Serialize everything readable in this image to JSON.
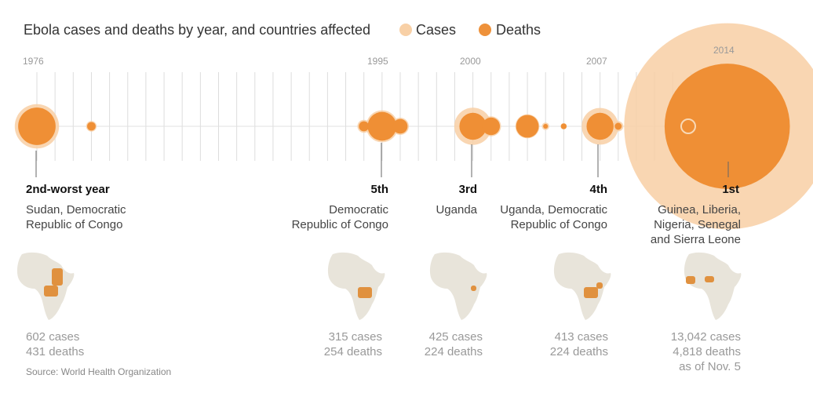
{
  "title": "Ebola cases and deaths by year, and countries affected",
  "legend": [
    {
      "label": "Cases",
      "color": "#f8d0a6"
    },
    {
      "label": "Deaths",
      "color": "#ee913a"
    }
  ],
  "colors": {
    "cases": "#f8cfa5",
    "deaths": "#ef8f35",
    "tick": "#dddddd",
    "axis": "#e0e0e0",
    "map": "#e8e4da",
    "map_affected": "#e0913f"
  },
  "year_labels": [
    "1976",
    "1995",
    "2000",
    "2007",
    "2014"
  ],
  "chart_data": {
    "type": "bubble-timeline",
    "x_range": [
      1976,
      2014
    ],
    "x_unit": "year",
    "series": [
      {
        "name": "Cases",
        "values": [
          {
            "year": 1976,
            "value": 602
          },
          {
            "year": 1979,
            "value": 34
          },
          {
            "year": 1994,
            "value": 52
          },
          {
            "year": 1995,
            "value": 315
          },
          {
            "year": 1996,
            "value": 91
          },
          {
            "year": 2000,
            "value": 425
          },
          {
            "year": 2001,
            "value": 122
          },
          {
            "year": 2003,
            "value": 178
          },
          {
            "year": 2004,
            "value": 17
          },
          {
            "year": 2005,
            "value": 12
          },
          {
            "year": 2007,
            "value": 413
          },
          {
            "year": 2008,
            "value": 32
          },
          {
            "year": 2012,
            "value": 57
          },
          {
            "year": 2014,
            "value": 13042
          }
        ]
      },
      {
        "name": "Deaths",
        "values": [
          {
            "year": 1976,
            "value": 431
          },
          {
            "year": 1979,
            "value": 22
          },
          {
            "year": 1994,
            "value": 31
          },
          {
            "year": 1995,
            "value": 254
          },
          {
            "year": 1996,
            "value": 66
          },
          {
            "year": 2000,
            "value": 224
          },
          {
            "year": 2001,
            "value": 96
          },
          {
            "year": 2003,
            "value": 157
          },
          {
            "year": 2004,
            "value": 7
          },
          {
            "year": 2005,
            "value": 10
          },
          {
            "year": 2007,
            "value": 224
          },
          {
            "year": 2008,
            "value": 15
          },
          {
            "year": 2012,
            "value": 36
          },
          {
            "year": 2014,
            "value": 4818
          }
        ]
      }
    ]
  },
  "highlights": [
    {
      "rank": "2nd-worst year",
      "countries": "Sudan, Democratic\nRepublic of Congo",
      "cases": "602 cases",
      "deaths": "431 deaths",
      "note": ""
    },
    {
      "rank": "5th",
      "countries": "Democratic\nRepublic of Congo",
      "cases": "315 cases",
      "deaths": "254 deaths",
      "note": ""
    },
    {
      "rank": "3rd",
      "countries": "Uganda",
      "cases": "425 cases",
      "deaths": "224 deaths",
      "note": ""
    },
    {
      "rank": "4th",
      "countries": "Uganda, Democratic\nRepublic of Congo",
      "cases": "413 cases",
      "deaths": "224 deaths",
      "note": ""
    },
    {
      "rank": "1st",
      "countries": "Guinea, Liberia,\nNigeria, Senegal\nand Sierra Leone",
      "cases": "13,042 cases",
      "deaths": "4,818 deaths",
      "note": "as of Nov. 5"
    }
  ],
  "source": "Source: World Health Organization"
}
